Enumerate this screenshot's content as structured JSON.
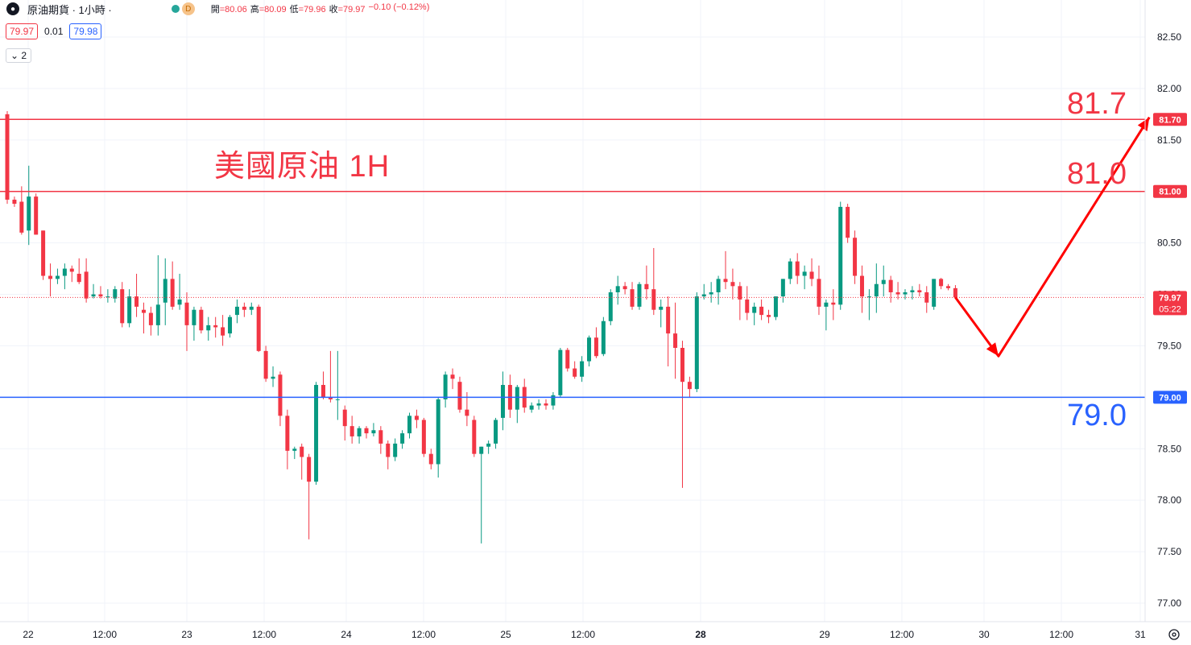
{
  "header": {
    "symbol": "原油期貨 · 1小時 ·",
    "badge": "D",
    "open_label": "開",
    "open": "=80.06",
    "high_label": "高",
    "high": "=80.09",
    "low_label": "低",
    "low": "=79.96",
    "close_label": "收",
    "close": "=79.97",
    "change": "−0.10 (−0.12%)",
    "sell_price": "79.97",
    "spread": "0.01",
    "buy_price": "79.98",
    "indicator_count": "2"
  },
  "annotation": {
    "title": "美國原油 1H",
    "level_high": "81.7",
    "level_mid": "81.0",
    "level_low": "79.0"
  },
  "colors": {
    "up": "#089981",
    "down": "#f23645",
    "red_line": "#f23645",
    "blue_line": "#2962ff",
    "grid": "#f0f3fa"
  },
  "chart_data": {
    "type": "candlestick",
    "ylim": [
      76.75,
      82.65
    ],
    "yticks": [
      "77.00",
      "77.50",
      "78.00",
      "78.50",
      "79.00",
      "79.50",
      "80.00",
      "80.50",
      "81.00",
      "81.50",
      "82.00",
      "82.50"
    ],
    "xticks": [
      "22",
      "12:00",
      "23",
      "12:00",
      "24",
      "12:00",
      "25",
      "12:00",
      "28",
      "29",
      "12:00",
      "30",
      "12:00",
      "31"
    ],
    "price_tags": {
      "r1": "81.70",
      "r2": "81.00",
      "s1": "79.00",
      "last": "79.97",
      "countdown": "05:22"
    },
    "horizontal_lines": [
      {
        "value": 81.7,
        "color": "red"
      },
      {
        "value": 81.0,
        "color": "red"
      },
      {
        "value": 79.0,
        "color": "blue"
      }
    ],
    "projection": [
      [
        79.97,
        0
      ],
      [
        79.4,
        6
      ],
      [
        81.72,
        27
      ]
    ],
    "candles": [
      [
        81.75,
        81.78,
        80.88,
        80.92
      ],
      [
        80.92,
        80.95,
        80.85,
        80.88
      ],
      [
        80.9,
        81.05,
        80.58,
        80.6
      ],
      [
        80.62,
        81.25,
        80.48,
        80.95
      ],
      [
        80.95,
        80.98,
        80.58,
        80.58
      ],
      [
        80.62,
        80.62,
        80.14,
        80.18
      ],
      [
        80.18,
        80.3,
        79.98,
        80.15
      ],
      [
        80.15,
        80.25,
        80.1,
        80.18
      ],
      [
        80.18,
        80.3,
        80.05,
        80.25
      ],
      [
        80.25,
        80.28,
        80.12,
        80.22
      ],
      [
        80.2,
        80.35,
        80.1,
        80.12
      ],
      [
        80.22,
        80.35,
        79.92,
        79.96
      ],
      [
        79.98,
        80.1,
        79.96,
        80.0
      ],
      [
        80.0,
        80.08,
        79.96,
        79.98
      ],
      [
        79.98,
        80.05,
        79.92,
        79.98
      ],
      [
        79.96,
        80.08,
        79.92,
        80.05
      ],
      [
        80.05,
        80.12,
        79.68,
        79.72
      ],
      [
        79.72,
        80.05,
        79.68,
        79.98
      ],
      [
        79.98,
        80.2,
        79.78,
        79.88
      ],
      [
        79.85,
        79.92,
        79.62,
        79.82
      ],
      [
        79.82,
        79.88,
        79.6,
        79.7
      ],
      [
        79.7,
        80.38,
        79.6,
        79.9
      ],
      [
        79.92,
        80.35,
        79.7,
        80.15
      ],
      [
        80.15,
        80.32,
        79.85,
        79.88
      ],
      [
        79.9,
        80.2,
        79.85,
        79.95
      ],
      [
        79.92,
        80.02,
        79.45,
        79.7
      ],
      [
        79.7,
        79.88,
        79.55,
        79.85
      ],
      [
        79.85,
        79.88,
        79.62,
        79.65
      ],
      [
        79.65,
        79.78,
        79.55,
        79.7
      ],
      [
        79.7,
        79.78,
        79.58,
        79.68
      ],
      [
        79.68,
        79.8,
        79.5,
        79.6
      ],
      [
        79.62,
        79.8,
        79.58,
        79.78
      ],
      [
        79.8,
        79.95,
        79.72,
        79.88
      ],
      [
        79.88,
        79.92,
        79.78,
        79.85
      ],
      [
        79.85,
        79.92,
        79.8,
        79.88
      ],
      [
        79.88,
        79.9,
        79.44,
        79.45
      ],
      [
        79.45,
        79.5,
        79.15,
        79.18
      ],
      [
        79.18,
        79.3,
        79.1,
        79.2
      ],
      [
        79.22,
        79.25,
        78.72,
        78.82
      ],
      [
        78.82,
        78.88,
        78.3,
        78.48
      ],
      [
        78.48,
        78.52,
        78.4,
        78.5
      ],
      [
        78.52,
        78.55,
        78.2,
        78.42
      ],
      [
        78.42,
        78.45,
        77.62,
        78.18
      ],
      [
        78.18,
        79.15,
        78.15,
        79.12
      ],
      [
        79.12,
        79.25,
        78.98,
        79.0
      ],
      [
        79.0,
        79.45,
        78.95,
        78.98
      ],
      [
        78.98,
        79.45,
        78.78,
        78.98
      ],
      [
        78.88,
        78.92,
        78.58,
        78.72
      ],
      [
        78.72,
        78.82,
        78.55,
        78.62
      ],
      [
        78.62,
        78.72,
        78.55,
        78.7
      ],
      [
        78.7,
        78.72,
        78.6,
        78.65
      ],
      [
        78.65,
        78.75,
        78.62,
        78.68
      ],
      [
        78.68,
        78.72,
        78.45,
        78.55
      ],
      [
        78.55,
        78.58,
        78.3,
        78.42
      ],
      [
        78.42,
        78.6,
        78.38,
        78.55
      ],
      [
        78.55,
        78.68,
        78.5,
        78.65
      ],
      [
        78.65,
        78.85,
        78.6,
        78.82
      ],
      [
        78.82,
        78.88,
        78.7,
        78.78
      ],
      [
        78.78,
        78.8,
        78.42,
        78.45
      ],
      [
        78.45,
        78.5,
        78.3,
        78.35
      ],
      [
        78.35,
        79.0,
        78.22,
        78.98
      ],
      [
        78.98,
        79.25,
        78.9,
        79.22
      ],
      [
        79.22,
        79.28,
        79.08,
        79.18
      ],
      [
        79.15,
        79.2,
        78.85,
        78.88
      ],
      [
        78.88,
        79.05,
        78.72,
        78.82
      ],
      [
        78.78,
        78.82,
        78.42,
        78.45
      ],
      [
        78.45,
        78.52,
        77.58,
        78.52
      ],
      [
        78.52,
        78.58,
        78.45,
        78.55
      ],
      [
        78.55,
        78.8,
        78.5,
        78.78
      ],
      [
        78.8,
        79.25,
        78.68,
        79.12
      ],
      [
        79.12,
        79.22,
        78.8,
        78.88
      ],
      [
        78.88,
        79.12,
        78.75,
        79.1
      ],
      [
        79.1,
        79.18,
        78.85,
        78.9
      ],
      [
        78.88,
        78.95,
        78.85,
        78.92
      ],
      [
        78.92,
        78.98,
        78.88,
        78.94
      ],
      [
        78.94,
        78.98,
        78.88,
        78.92
      ],
      [
        78.92,
        79.05,
        78.88,
        79.02
      ],
      [
        79.02,
        79.48,
        79.0,
        79.46
      ],
      [
        79.46,
        79.48,
        79.25,
        79.28
      ],
      [
        79.28,
        79.35,
        79.18,
        79.2
      ],
      [
        79.2,
        79.4,
        79.15,
        79.35
      ],
      [
        79.35,
        79.6,
        79.3,
        79.58
      ],
      [
        79.58,
        79.68,
        79.38,
        79.4
      ],
      [
        79.42,
        79.78,
        79.4,
        79.74
      ],
      [
        79.74,
        80.05,
        79.7,
        80.02
      ],
      [
        80.02,
        80.18,
        79.9,
        80.08
      ],
      [
        80.08,
        80.12,
        80.0,
        80.05
      ],
      [
        80.05,
        80.12,
        79.85,
        79.88
      ],
      [
        79.88,
        80.12,
        79.85,
        80.1
      ],
      [
        80.1,
        80.28,
        79.95,
        80.05
      ],
      [
        80.05,
        80.45,
        79.8,
        79.85
      ],
      [
        79.85,
        79.95,
        79.68,
        79.88
      ],
      [
        79.88,
        79.98,
        79.3,
        79.62
      ],
      [
        79.62,
        79.92,
        79.18,
        79.48
      ],
      [
        79.48,
        79.55,
        78.12,
        79.15
      ],
      [
        79.15,
        79.2,
        79.0,
        79.08
      ],
      [
        79.08,
        80.02,
        79.05,
        79.98
      ],
      [
        79.98,
        80.1,
        79.95,
        80.0
      ],
      [
        80.0,
        80.12,
        79.92,
        80.02
      ],
      [
        80.02,
        80.18,
        79.9,
        80.15
      ],
      [
        80.15,
        80.42,
        80.05,
        80.12
      ],
      [
        80.12,
        80.25,
        79.95,
        80.08
      ],
      [
        80.08,
        80.12,
        79.75,
        79.95
      ],
      [
        79.95,
        80.08,
        79.75,
        79.82
      ],
      [
        79.82,
        79.92,
        79.7,
        79.88
      ],
      [
        79.88,
        79.95,
        79.75,
        79.8
      ],
      [
        79.8,
        79.85,
        79.72,
        79.78
      ],
      [
        79.78,
        79.98,
        79.75,
        79.98
      ],
      [
        79.98,
        80.15,
        79.92,
        80.15
      ],
      [
        80.15,
        80.35,
        80.1,
        80.32
      ],
      [
        80.32,
        80.4,
        80.1,
        80.18
      ],
      [
        80.18,
        80.28,
        80.05,
        80.22
      ],
      [
        80.22,
        80.35,
        80.08,
        80.15
      ],
      [
        80.15,
        80.28,
        79.8,
        79.88
      ],
      [
        79.88,
        79.95,
        79.65,
        79.92
      ],
      [
        79.92,
        80.05,
        79.75,
        79.9
      ],
      [
        79.9,
        80.9,
        79.85,
        80.85
      ],
      [
        80.85,
        80.88,
        80.5,
        80.55
      ],
      [
        80.55,
        80.62,
        80.1,
        80.18
      ],
      [
        80.18,
        80.28,
        79.82,
        79.98
      ],
      [
        79.98,
        80.05,
        79.75,
        79.98
      ],
      [
        79.98,
        80.3,
        79.82,
        80.1
      ],
      [
        80.1,
        80.28,
        79.98,
        80.14
      ],
      [
        80.14,
        80.18,
        79.92,
        80.02
      ],
      [
        80.02,
        80.12,
        79.95,
        80.0
      ],
      [
        80.0,
        80.05,
        79.95,
        80.02
      ],
      [
        80.02,
        80.08,
        79.95,
        80.04
      ],
      [
        80.04,
        80.1,
        79.98,
        80.02
      ],
      [
        80.02,
        80.08,
        79.82,
        79.92
      ],
      [
        79.88,
        80.15,
        79.85,
        80.15
      ],
      [
        80.15,
        80.16,
        80.05,
        80.08
      ],
      [
        80.08,
        80.1,
        80.04,
        80.06
      ],
      [
        80.06,
        80.09,
        79.96,
        79.97
      ]
    ]
  }
}
